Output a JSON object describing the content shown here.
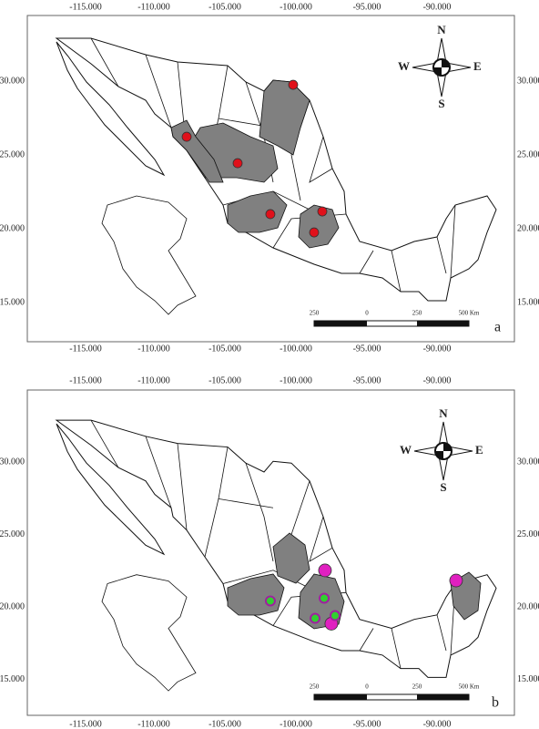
{
  "panels": [
    {
      "label": "a",
      "x_ticks": [
        "-115.000",
        "-110.000",
        "-105.000",
        "-100.000",
        "-95.000",
        "-90.000"
      ],
      "y_ticks": [
        "30.000",
        "25.000",
        "20.000",
        "15.000"
      ],
      "compass": {
        "n": "N",
        "e": "E",
        "s": "S",
        "w": "W"
      },
      "scale_labels": [
        "250",
        "0",
        "250",
        "500 Km"
      ],
      "point_groups": [
        {
          "color": "#e0101a",
          "points": [
            {
              "lon": -100.34,
              "lat": 29.75
            },
            {
              "lon": -107.86,
              "lat": 26.23
            },
            {
              "lon": -104.26,
              "lat": 24.44
            },
            {
              "lon": -101.95,
              "lat": 20.99
            },
            {
              "lon": -98.28,
              "lat": 21.17
            },
            {
              "lon": -98.86,
              "lat": 19.75
            }
          ]
        }
      ]
    },
    {
      "label": "b",
      "x_ticks": [
        "-115.000",
        "-110.000",
        "-105.000",
        "-100.000",
        "-95.000",
        "-90.000"
      ],
      "y_ticks": [
        "30.000",
        "25.000",
        "20.000",
        "15.000"
      ],
      "compass": {
        "n": "N",
        "e": "E",
        "s": "S",
        "w": "W"
      },
      "scale_labels": [
        "250",
        "0",
        "250",
        "500 Km"
      ],
      "point_groups": [
        {
          "color": "#e020c0",
          "points": [
            {
              "lon": -98.09,
              "lat": 22.52
            },
            {
              "lon": -88.83,
              "lat": 21.82
            },
            {
              "lon": -97.64,
              "lat": 18.84
            }
          ]
        },
        {
          "color": "#30d030",
          "points": [
            {
              "lon": -101.95,
              "lat": 20.41
            },
            {
              "lon": -98.15,
              "lat": 20.6
            },
            {
              "lon": -98.79,
              "lat": 19.21
            },
            {
              "lon": -97.38,
              "lat": 19.4
            }
          ]
        }
      ]
    }
  ]
}
